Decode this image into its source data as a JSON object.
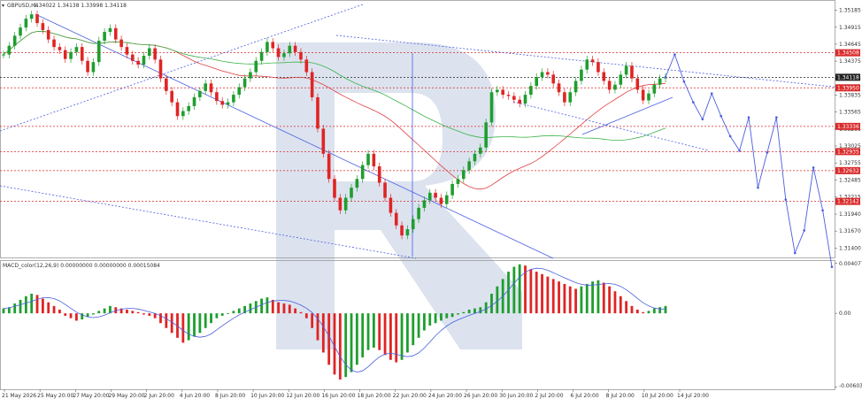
{
  "chart_data": {
    "type": "line",
    "symbol_header": "GBPUSD,H4",
    "ohlc_header": "1.34022 1.34138 1.33998 1.34118",
    "macd_header": "MACD_color(12,26,9) 0.00000000 0.00000000 0.00015084",
    "price_axis_ticks": [
      "1.35185",
      "1.34915",
      "1.34645",
      "1.34375",
      "1.34105",
      "1.33835",
      "1.33565",
      "1.33295",
      "1.33025",
      "1.32755",
      "1.32485",
      "1.32215",
      "1.31940",
      "1.31670",
      "1.31400"
    ],
    "price_ylim": [
      1.3125,
      1.3532
    ],
    "macd_axis_ticks": [
      "0.0040775",
      "0.00",
      "-0.0060305"
    ],
    "macd_ylim": [
      -0.0062,
      0.0042
    ],
    "x_labels": [
      "21 May 2026",
      "25 May 20:00",
      "27 May 20:00",
      "29 May 20:00",
      "2 Jun 20:00",
      "4 Jun 20:00",
      "8 Jun 20:00",
      "10 Jun 20:00",
      "12 Jun 20:00",
      "16 Jun 20:00",
      "18 Jun 20:00",
      "22 Jun 20:00",
      "24 Jun 20:00",
      "26 Jun 20:00",
      "30 Jun 20:00",
      "2 Jul 20:00",
      "6 Jul 20:00",
      "8 Jul 20:00",
      "10 Jul 20:00",
      "14 Jul 20:00"
    ],
    "levels": [
      {
        "price": 1.34508,
        "label": "1.34508",
        "color": "#d92b2b"
      },
      {
        "price": 1.34118,
        "label": "1.34118",
        "color": "#222222"
      },
      {
        "price": 1.3395,
        "label": "1.33950",
        "color": "#d92b2b"
      },
      {
        "price": 1.33336,
        "label": "1.33336",
        "color": "#d92b2b"
      },
      {
        "price": 1.32935,
        "label": "1.32935",
        "color": "#d92b2b"
      },
      {
        "price": 1.32632,
        "label": "1.32632",
        "color": "#d92b2b"
      },
      {
        "price": 1.32142,
        "label": "1.32142",
        "color": "#d92b2b"
      }
    ],
    "price_series": [
      1.3448,
      1.3462,
      1.3478,
      1.3491,
      1.3505,
      1.3512,
      1.3498,
      1.3487,
      1.3472,
      1.346,
      1.3455,
      1.3441,
      1.3452,
      1.346,
      1.3438,
      1.342,
      1.3436,
      1.347,
      1.3484,
      1.349,
      1.3472,
      1.346,
      1.3448,
      1.3438,
      1.3432,
      1.3446,
      1.3458,
      1.344,
      1.341,
      1.339,
      1.3372,
      1.335,
      1.3358,
      1.3366,
      1.338,
      1.339,
      1.3402,
      1.3388,
      1.3374,
      1.3368,
      1.3372,
      1.3384,
      1.3396,
      1.341,
      1.342,
      1.3438,
      1.3452,
      1.3468,
      1.3458,
      1.3444,
      1.345,
      1.3462,
      1.3452,
      1.344,
      1.342,
      1.338,
      1.333,
      1.329,
      1.325,
      1.322,
      1.32,
      1.322,
      1.3236,
      1.325,
      1.3272,
      1.329,
      1.327,
      1.3244,
      1.322,
      1.3196,
      1.3176,
      1.316,
      1.317,
      1.3186,
      1.3204,
      1.3216,
      1.3228,
      1.322,
      1.321,
      1.3224,
      1.3242,
      1.325,
      1.3264,
      1.3278,
      1.329,
      1.33,
      1.334,
      1.3388,
      1.3392,
      1.3384,
      1.3382,
      1.3376,
      1.337,
      1.3384,
      1.3398,
      1.3412,
      1.342,
      1.3416,
      1.3402,
      1.3388,
      1.3372,
      1.3388,
      1.3406,
      1.3424,
      1.344,
      1.3436,
      1.342,
      1.3406,
      1.3392,
      1.34,
      1.3416,
      1.343,
      1.341,
      1.3392,
      1.3375,
      1.3386,
      1.34,
      1.341,
      1.3412
    ],
    "forecast": [
      1.3412,
      1.3448,
      1.3405,
      1.3372,
      1.3345,
      1.3386,
      1.335,
      1.3318,
      1.3295,
      1.3348,
      1.3236,
      1.3292,
      1.3348,
      1.3217,
      1.3132,
      1.3168,
      1.3268,
      1.32,
      1.311
    ],
    "macd_values": [
      0.0004,
      0.0005,
      0.0008,
      0.0011,
      0.0014,
      0.0016,
      0.0015,
      0.0012,
      0.0009,
      0.0006,
      0.0003,
      -0.0002,
      -0.0004,
      -0.0006,
      -0.0005,
      -0.0003,
      -0.0001,
      0.0002,
      0.0004,
      0.0006,
      0.0005,
      0.0004,
      0.0003,
      0.0002,
      0.0001,
      -0.0001,
      -0.0002,
      -0.0004,
      -0.0008,
      -0.0012,
      -0.0016,
      -0.002,
      -0.0024,
      -0.0022,
      -0.0019,
      -0.0016,
      -0.0012,
      -0.0008,
      -0.0004,
      -0.0002,
      0.0,
      0.0002,
      0.0004,
      0.0006,
      0.0008,
      0.001,
      0.0012,
      0.0013,
      0.0011,
      0.0009,
      0.0008,
      0.0007,
      0.0004,
      0.0001,
      -0.0004,
      -0.0012,
      -0.0022,
      -0.0032,
      -0.0042,
      -0.005,
      -0.0054,
      -0.0052,
      -0.0048,
      -0.0042,
      -0.0036,
      -0.003,
      -0.0028,
      -0.003,
      -0.0034,
      -0.0038,
      -0.004,
      -0.0038,
      -0.0032,
      -0.0026,
      -0.002,
      -0.0014,
      -0.001,
      -0.0008,
      -0.0006,
      -0.0004,
      -0.0003,
      -0.0001,
      0.0001,
      0.0003,
      0.0004,
      0.0005,
      0.0009,
      0.0016,
      0.0022,
      0.0028,
      0.0034,
      0.0038,
      0.004,
      0.0039,
      0.0036,
      0.0034,
      0.0032,
      0.003,
      0.0028,
      0.0026,
      0.0024,
      0.0022,
      0.002,
      0.0022,
      0.0024,
      0.0026,
      0.0027,
      0.0025,
      0.0022,
      0.0018,
      0.0014,
      0.001,
      0.0006,
      0.0003,
      0.0001,
      0.0002,
      0.0004,
      0.0005,
      0.0006
    ],
    "colors": {
      "bull": "#1e9e2e",
      "bear": "#e02424",
      "ma_red": "#e04040",
      "ma_green": "#3cb44b",
      "trend": "#4a5de0",
      "level": "#d92b2b"
    }
  }
}
